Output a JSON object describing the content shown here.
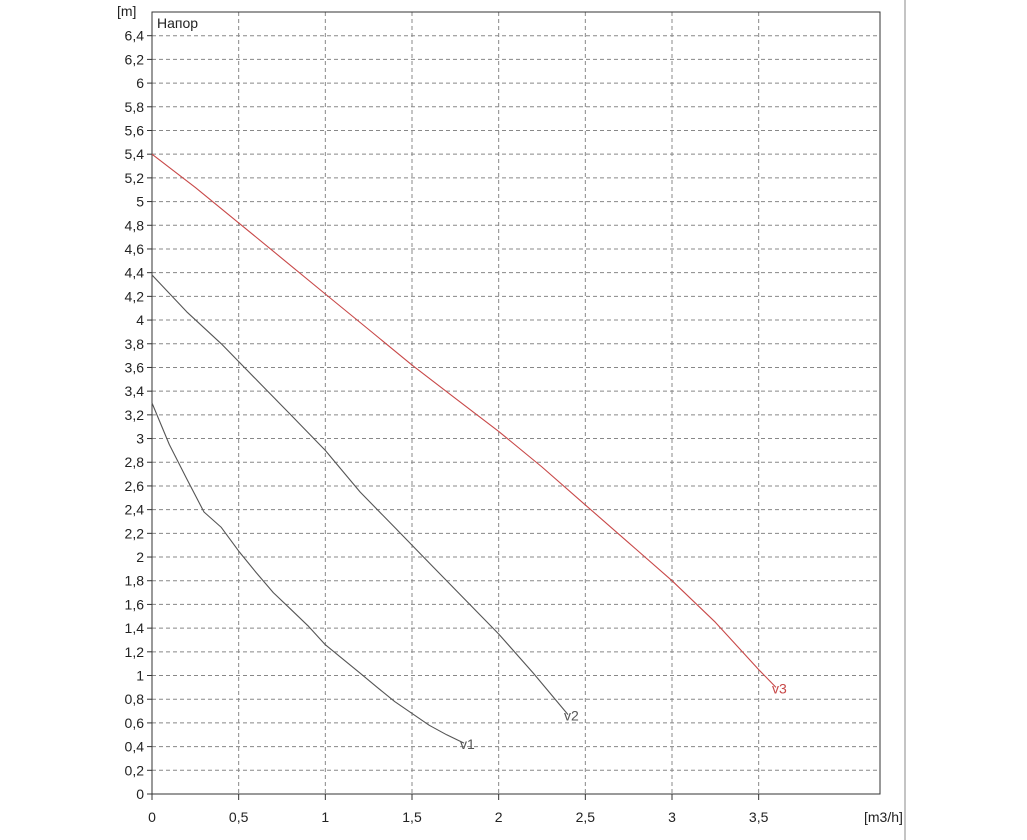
{
  "chart_data": {
    "type": "line",
    "title": "Напор",
    "y_unit": "[m]",
    "x_unit": "[m3/h]",
    "xlim": [
      0,
      4.2
    ],
    "ylim": [
      0,
      6.6
    ],
    "x_ticks": [
      "0",
      "0,5",
      "1",
      "1,5",
      "2",
      "2,5",
      "3",
      "3,5"
    ],
    "y_ticks": [
      "0",
      "0,2",
      "0,4",
      "0,6",
      "0,8",
      "1",
      "1,2",
      "1,4",
      "1,6",
      "1,8",
      "2",
      "2,2",
      "2,4",
      "2,6",
      "2,8",
      "3",
      "3,2",
      "3,4",
      "3,6",
      "3,8",
      "4",
      "4,2",
      "4,4",
      "4,6",
      "4,8",
      "5",
      "5,2",
      "5,4",
      "5,6",
      "5,8",
      "6",
      "6,2",
      "6,4"
    ],
    "grid": true,
    "series": [
      {
        "name": "v1",
        "color": "#555555",
        "x": [
          0,
          0.1,
          0.2,
          0.3,
          0.4,
          0.5,
          0.6,
          0.7,
          0.8,
          0.9,
          1.0,
          1.1,
          1.2,
          1.3,
          1.4,
          1.5,
          1.6,
          1.7,
          1.8
        ],
        "y": [
          3.3,
          2.95,
          2.66,
          2.38,
          2.25,
          2.05,
          1.87,
          1.7,
          1.56,
          1.42,
          1.26,
          1.14,
          1.02,
          0.9,
          0.78,
          0.68,
          0.58,
          0.5,
          0.43
        ]
      },
      {
        "name": "v2",
        "color": "#555555",
        "x": [
          0,
          0.2,
          0.4,
          0.6,
          0.8,
          1.0,
          1.2,
          1.4,
          1.6,
          1.8,
          2.0,
          2.2,
          2.4
        ],
        "y": [
          4.38,
          4.07,
          3.8,
          3.5,
          3.2,
          2.9,
          2.55,
          2.25,
          1.95,
          1.65,
          1.35,
          1.02,
          0.67
        ]
      },
      {
        "name": "v3",
        "color": "#c84848",
        "x": [
          0,
          0.25,
          0.5,
          0.75,
          1.0,
          1.25,
          1.5,
          1.75,
          2.0,
          2.25,
          2.5,
          2.75,
          3.0,
          3.25,
          3.5,
          3.6
        ],
        "y": [
          5.4,
          5.12,
          4.82,
          4.52,
          4.22,
          3.92,
          3.62,
          3.34,
          3.06,
          2.76,
          2.44,
          2.12,
          1.8,
          1.45,
          1.05,
          0.9
        ]
      }
    ]
  }
}
